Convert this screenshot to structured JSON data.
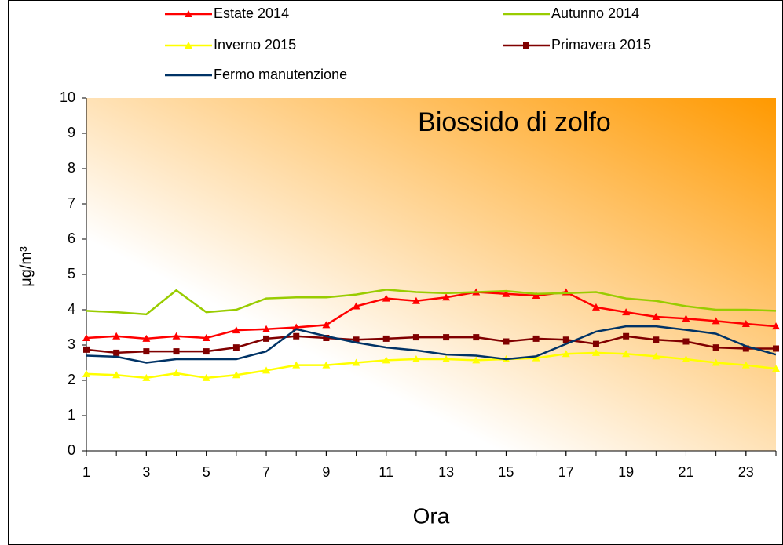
{
  "chart_data": {
    "type": "line",
    "title": "Biossido di zolfo",
    "x_label": "Ora",
    "y_label": "μg/m³",
    "x": [
      1,
      2,
      3,
      4,
      5,
      6,
      7,
      8,
      9,
      10,
      11,
      12,
      13,
      14,
      15,
      16,
      17,
      18,
      19,
      20,
      21,
      22,
      23,
      24
    ],
    "xlim": [
      1,
      24
    ],
    "xticks": [
      1,
      3,
      5,
      7,
      9,
      11,
      13,
      15,
      17,
      19,
      21,
      23
    ],
    "ylim": [
      0,
      10
    ],
    "yticks": [
      0,
      1,
      2,
      3,
      4,
      5,
      6,
      7,
      8,
      9,
      10
    ],
    "grid": false,
    "series": [
      {
        "name": "Estate 2014",
        "color": "#ff0000",
        "marker": "triangle",
        "values": [
          3.2,
          3.25,
          3.18,
          3.25,
          3.2,
          3.42,
          3.45,
          3.5,
          3.57,
          4.1,
          4.32,
          4.25,
          4.35,
          4.5,
          4.45,
          4.4,
          4.5,
          4.07,
          3.93,
          3.8,
          3.75,
          3.68,
          3.6,
          3.53
        ]
      },
      {
        "name": "Autunno 2014",
        "color": "#99cc00",
        "marker": "none",
        "values": [
          3.97,
          3.93,
          3.87,
          4.55,
          3.93,
          4.0,
          4.32,
          4.35,
          4.35,
          4.43,
          4.57,
          4.5,
          4.47,
          4.5,
          4.53,
          4.45,
          4.47,
          4.5,
          4.32,
          4.25,
          4.1,
          4.0,
          4.0,
          3.97
        ]
      },
      {
        "name": "Inverno 2015",
        "color": "#ffff00",
        "marker": "triangle",
        "values": [
          2.18,
          2.15,
          2.07,
          2.2,
          2.07,
          2.15,
          2.28,
          2.43,
          2.43,
          2.5,
          2.57,
          2.6,
          2.6,
          2.57,
          2.6,
          2.63,
          2.75,
          2.78,
          2.75,
          2.68,
          2.6,
          2.5,
          2.43,
          2.33
        ]
      },
      {
        "name": "Primavera 2015",
        "color": "#800000",
        "marker": "square",
        "values": [
          2.87,
          2.78,
          2.82,
          2.82,
          2.82,
          2.93,
          3.18,
          3.25,
          3.2,
          3.15,
          3.18,
          3.22,
          3.22,
          3.22,
          3.1,
          3.18,
          3.15,
          3.03,
          3.25,
          3.15,
          3.1,
          2.93,
          2.9,
          2.9
        ]
      },
      {
        "name": "Fermo manutenzione",
        "color": "#003366",
        "marker": "none",
        "values": [
          2.7,
          2.67,
          2.5,
          2.6,
          2.6,
          2.6,
          2.82,
          3.45,
          3.25,
          3.07,
          2.93,
          2.85,
          2.73,
          2.7,
          2.6,
          2.68,
          3.03,
          3.38,
          3.53,
          3.53,
          3.43,
          3.32,
          2.97,
          2.73
        ]
      }
    ]
  }
}
